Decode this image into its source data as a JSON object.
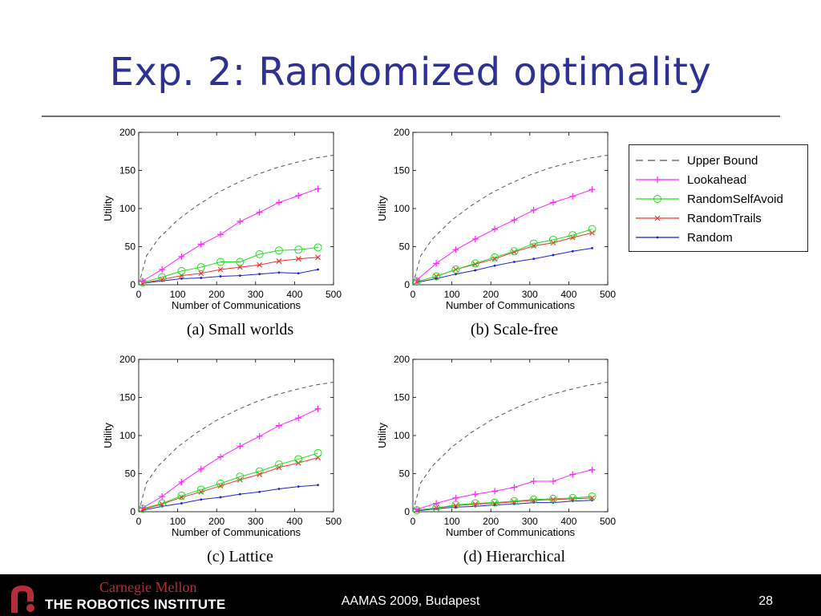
{
  "slide": {
    "title": "Exp. 2: Randomized optimality",
    "footer_center": "AAMAS 2009, Budapest",
    "page_number": "28",
    "logo_top": "Carnegie Mellon",
    "logo_bottom": "THE ROBOTICS INSTITUTE"
  },
  "series_styles": [
    {
      "name": "Upper Bound",
      "color": "#555555",
      "marker": "none",
      "dash": true
    },
    {
      "name": "Lookahead",
      "color": "#ff22ff",
      "marker": "plus",
      "dash": false
    },
    {
      "name": "RandomSelfAvoid",
      "color": "#22dd22",
      "marker": "circle",
      "dash": false
    },
    {
      "name": "RandomTrails",
      "color": "#ee3333",
      "marker": "x",
      "dash": false
    },
    {
      "name": "Random",
      "color": "#2222cc",
      "marker": "dot",
      "dash": false
    }
  ],
  "chart_data": [
    {
      "type": "line",
      "caption": "(a) Small worlds",
      "xlabel": "Number of Communications",
      "ylabel": "Utility",
      "xlim": [
        0,
        500
      ],
      "ylim": [
        0,
        200
      ],
      "xticks": [
        "0",
        "100",
        "200",
        "300",
        "400",
        "500"
      ],
      "yticks": [
        "0",
        "50",
        "100",
        "150",
        "200"
      ],
      "x": [
        10,
        60,
        110,
        160,
        210,
        260,
        310,
        360,
        410,
        460
      ],
      "upper_bound": {
        "x": [
          0,
          20,
          50,
          100,
          150,
          200,
          250,
          300,
          350,
          400,
          450,
          500
        ],
        "values": [
          0,
          38,
          60,
          85,
          104,
          120,
          133,
          144,
          153,
          160,
          166,
          170
        ]
      },
      "series": [
        {
          "name": "Lookahead",
          "values": [
            5,
            20,
            37,
            53,
            66,
            83,
            95,
            108,
            117,
            126
          ]
        },
        {
          "name": "RandomSelfAvoid",
          "values": [
            3,
            10,
            18,
            23,
            30,
            30,
            40,
            45,
            46,
            49
          ]
        },
        {
          "name": "RandomTrails",
          "values": [
            2,
            7,
            12,
            15,
            20,
            23,
            26,
            31,
            34,
            36
          ]
        },
        {
          "name": "Random",
          "values": [
            2,
            5,
            8,
            9,
            11,
            12,
            14,
            16,
            15,
            20
          ]
        }
      ]
    },
    {
      "type": "line",
      "caption": "(b) Scale-free",
      "xlabel": "Number of Communications",
      "ylabel": "Utility",
      "xlim": [
        0,
        500
      ],
      "ylim": [
        0,
        200
      ],
      "xticks": [
        "0",
        "100",
        "200",
        "300",
        "400",
        "500"
      ],
      "yticks": [
        "0",
        "50",
        "100",
        "150",
        "200"
      ],
      "x": [
        10,
        60,
        110,
        160,
        210,
        260,
        310,
        360,
        410,
        460
      ],
      "upper_bound": {
        "x": [
          0,
          20,
          50,
          100,
          150,
          200,
          250,
          300,
          350,
          400,
          450,
          500
        ],
        "values": [
          0,
          38,
          60,
          85,
          104,
          120,
          133,
          144,
          153,
          160,
          166,
          170
        ]
      },
      "series": [
        {
          "name": "Lookahead",
          "values": [
            6,
            28,
            46,
            60,
            73,
            85,
            98,
            108,
            116,
            125
          ]
        },
        {
          "name": "RandomSelfAvoid",
          "values": [
            4,
            11,
            20,
            28,
            36,
            44,
            54,
            59,
            65,
            73
          ]
        },
        {
          "name": "RandomTrails",
          "values": [
            4,
            11,
            20,
            27,
            34,
            43,
            51,
            55,
            62,
            68
          ]
        },
        {
          "name": "Random",
          "values": [
            3,
            8,
            14,
            19,
            25,
            30,
            34,
            39,
            44,
            48
          ]
        }
      ]
    },
    {
      "type": "line",
      "caption": "(c) Lattice",
      "xlabel": "Number of Communications",
      "ylabel": "Utility",
      "xlim": [
        0,
        500
      ],
      "ylim": [
        0,
        200
      ],
      "xticks": [
        "0",
        "100",
        "200",
        "300",
        "400",
        "500"
      ],
      "yticks": [
        "0",
        "50",
        "100",
        "150",
        "200"
      ],
      "x": [
        10,
        60,
        110,
        160,
        210,
        260,
        310,
        360,
        410,
        460
      ],
      "upper_bound": {
        "x": [
          0,
          20,
          50,
          100,
          150,
          200,
          250,
          300,
          350,
          400,
          450,
          500
        ],
        "values": [
          0,
          38,
          60,
          85,
          104,
          120,
          133,
          144,
          153,
          160,
          166,
          170
        ]
      },
      "series": [
        {
          "name": "Lookahead",
          "values": [
            5,
            20,
            39,
            56,
            72,
            86,
            99,
            113,
            123,
            135
          ]
        },
        {
          "name": "RandomSelfAvoid",
          "values": [
            4,
            11,
            21,
            29,
            37,
            46,
            53,
            62,
            69,
            77
          ]
        },
        {
          "name": "RandomTrails",
          "values": [
            3,
            10,
            19,
            26,
            34,
            42,
            49,
            58,
            64,
            71
          ]
        },
        {
          "name": "Random",
          "values": [
            2,
            7,
            11,
            16,
            19,
            23,
            26,
            30,
            33,
            35
          ]
        }
      ]
    },
    {
      "type": "line",
      "caption": "(d) Hierarchical",
      "xlabel": "Number of Communications",
      "ylabel": "Utility",
      "xlim": [
        0,
        500
      ],
      "ylim": [
        0,
        200
      ],
      "xticks": [
        "0",
        "100",
        "200",
        "300",
        "400",
        "500"
      ],
      "yticks": [
        "0",
        "50",
        "100",
        "150",
        "200"
      ],
      "x": [
        10,
        60,
        110,
        160,
        210,
        260,
        310,
        360,
        410,
        460
      ],
      "upper_bound": {
        "x": [
          0,
          20,
          50,
          100,
          150,
          200,
          250,
          300,
          350,
          400,
          450,
          500
        ],
        "values": [
          0,
          38,
          60,
          85,
          104,
          120,
          133,
          144,
          153,
          160,
          166,
          170
        ]
      },
      "series": [
        {
          "name": "Lookahead",
          "values": [
            3,
            11,
            18,
            23,
            27,
            32,
            40,
            40,
            49,
            55
          ]
        },
        {
          "name": "RandomSelfAvoid",
          "values": [
            2,
            5,
            9,
            11,
            12,
            14,
            16,
            17,
            18,
            20
          ]
        },
        {
          "name": "RandomTrails",
          "values": [
            2,
            5,
            8,
            10,
            11,
            13,
            15,
            16,
            17,
            18
          ]
        },
        {
          "name": "Random",
          "values": [
            1,
            4,
            6,
            7,
            9,
            10,
            12,
            12,
            14,
            15
          ]
        }
      ]
    }
  ]
}
